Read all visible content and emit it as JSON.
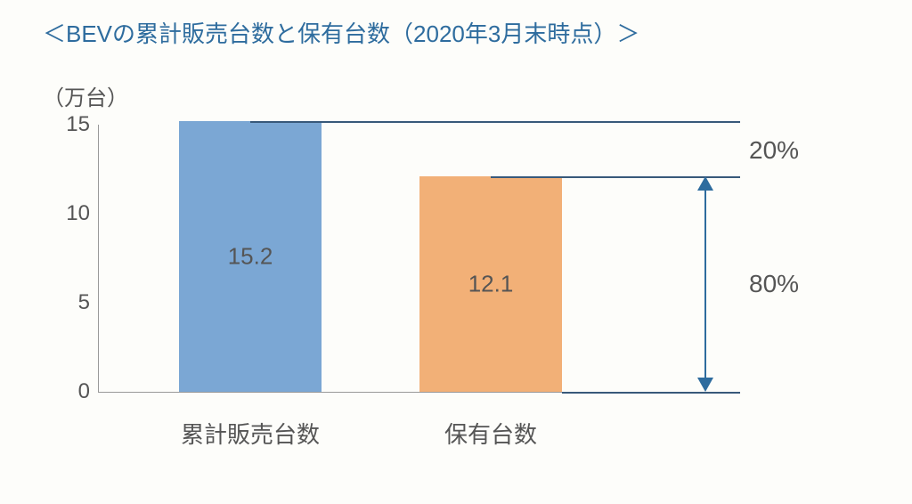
{
  "title": "＜BEVの累計販売台数と保有台数（2020年3月末時点）＞",
  "title_fontsize": 26,
  "title_color": "#2e6c9e",
  "y_unit": "（万台）",
  "y_unit_fontsize": 24,
  "y_unit_color": "#555555",
  "axis": {
    "ymin": 0,
    "ymax": 15,
    "yticks": [
      0,
      5,
      10,
      15
    ],
    "tick_fontsize": 24,
    "label_fontsize": 26
  },
  "bars": [
    {
      "category": "累計販売台数",
      "value": 15.2,
      "color": "#7ba7d4",
      "value_label": "15.2"
    },
    {
      "category": "保有台数",
      "value": 12.1,
      "color": "#f2b077",
      "value_label": "12.1"
    }
  ],
  "value_fontsize": 26,
  "annotation": {
    "top_pct_label": "20%",
    "main_pct_label": "80%",
    "label_fontsize": 28,
    "guide_color": "#38597a",
    "arrow_color": "#2e6c9e"
  },
  "colors": {
    "background": "#fdfdfa",
    "axis_text": "#555555"
  }
}
